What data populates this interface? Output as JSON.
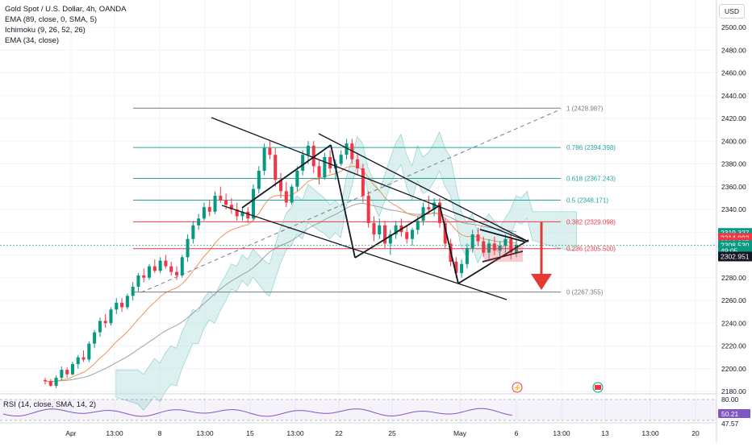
{
  "legend": {
    "symbol": "Gold Spot / U.S. Dollar, 4h, OANDA",
    "ema89": "EMA (89, close, 0, SMA, 5)",
    "ichimoku": "Ichimoku (9, 26, 52, 26)",
    "ema34": "EMA (34, close)"
  },
  "currency": "USD",
  "rsi": {
    "label": "RSI (14, close, SMA, 14, 2)",
    "levels": [
      "80.00",
      "50.21",
      "47.57"
    ]
  },
  "colors": {
    "up": "#089981",
    "down": "#f23645",
    "fib": "#26a69a",
    "fib_red": "#f23645",
    "ema89": "#9aa4a0",
    "ema34": "#f0925a",
    "cloud": "#b2dfdb",
    "arrow": "#e53935",
    "axis_text": "#131722"
  },
  "chart_data": {
    "type": "candlestick",
    "x": [
      "Apr",
      "13:00",
      "8",
      "13:00",
      "15",
      "13:00",
      "22",
      "25",
      "May",
      "6",
      "13:00",
      "13",
      "13:00",
      "20"
    ],
    "y_ticks": [
      2180,
      2200,
      2220,
      2240,
      2260,
      2280,
      2300,
      2320,
      2340,
      2360,
      2380,
      2400,
      2420,
      2440,
      2460,
      2480,
      2500
    ],
    "ylim": [
      2180,
      2510
    ],
    "fibonacci": [
      {
        "level": "1",
        "price": 2428.987,
        "label": "1 (2428.987)"
      },
      {
        "level": "0.786",
        "price": 2394.398,
        "label": "0.786 (2394.398)"
      },
      {
        "level": "0.618",
        "price": 2367.243,
        "label": "0.618 (2367.243)"
      },
      {
        "level": "0.5",
        "price": 2348.171,
        "label": "0.5 (2348.171)"
      },
      {
        "level": "0.382",
        "price": 2329.098,
        "label": "0.382 (2329.098)"
      },
      {
        "level": "0.236",
        "price": 2305.5,
        "label": "0.236 (2305.500)"
      },
      {
        "level": "0",
        "price": 2267.355,
        "label": "0 (2267.355)"
      }
    ],
    "price_labels": [
      {
        "text": "2319.327",
        "price": 2319.327,
        "color": "#089981"
      },
      {
        "text": "2314.993",
        "price": 2314.993,
        "color": "#f23645"
      },
      {
        "text": "2310.887",
        "price": 2310.887,
        "color": "#f23645"
      },
      {
        "text": "2308.530",
        "price": 2308.53,
        "color": "#089981"
      },
      {
        "text": "49:05",
        "price": 2303.6,
        "color": "#089981"
      },
      {
        "text": "2302.951",
        "price": 2298.6,
        "color": "#131722"
      }
    ],
    "candles": [
      [
        2190,
        2192,
        2186,
        2189
      ],
      [
        2189,
        2191,
        2184,
        2185
      ],
      [
        2185,
        2194,
        2183,
        2192
      ],
      [
        2192,
        2202,
        2190,
        2199
      ],
      [
        2199,
        2201,
        2192,
        2195
      ],
      [
        2195,
        2206,
        2194,
        2204
      ],
      [
        2204,
        2212,
        2200,
        2210
      ],
      [
        2210,
        2216,
        2206,
        2208
      ],
      [
        2208,
        2224,
        2206,
        2222
      ],
      [
        2222,
        2234,
        2218,
        2232
      ],
      [
        2232,
        2245,
        2228,
        2242
      ],
      [
        2242,
        2248,
        2236,
        2240
      ],
      [
        2240,
        2254,
        2238,
        2252
      ],
      [
        2252,
        2262,
        2248,
        2258
      ],
      [
        2258,
        2262,
        2250,
        2254
      ],
      [
        2254,
        2266,
        2252,
        2264
      ],
      [
        2264,
        2276,
        2260,
        2272
      ],
      [
        2272,
        2284,
        2268,
        2282
      ],
      [
        2282,
        2288,
        2276,
        2280
      ],
      [
        2280,
        2292,
        2278,
        2290
      ],
      [
        2290,
        2296,
        2284,
        2286
      ],
      [
        2286,
        2298,
        2284,
        2295
      ],
      [
        2295,
        2300,
        2288,
        2290
      ],
      [
        2290,
        2294,
        2282,
        2285
      ],
      [
        2285,
        2290,
        2278,
        2282
      ],
      [
        2282,
        2300,
        2280,
        2298
      ],
      [
        2298,
        2318,
        2294,
        2314
      ],
      [
        2314,
        2330,
        2310,
        2326
      ],
      [
        2326,
        2336,
        2322,
        2332
      ],
      [
        2332,
        2346,
        2330,
        2342
      ],
      [
        2342,
        2348,
        2334,
        2338
      ],
      [
        2338,
        2356,
        2336,
        2352
      ],
      [
        2352,
        2360,
        2346,
        2348
      ],
      [
        2348,
        2354,
        2340,
        2344
      ],
      [
        2344,
        2350,
        2336,
        2340
      ],
      [
        2340,
        2346,
        2330,
        2334
      ],
      [
        2334,
        2342,
        2330,
        2338
      ],
      [
        2338,
        2342,
        2328,
        2332
      ],
      [
        2332,
        2362,
        2330,
        2358
      ],
      [
        2358,
        2378,
        2354,
        2374
      ],
      [
        2374,
        2398,
        2370,
        2394
      ],
      [
        2394,
        2400,
        2384,
        2388
      ],
      [
        2388,
        2394,
        2360,
        2366
      ],
      [
        2366,
        2372,
        2350,
        2356
      ],
      [
        2356,
        2364,
        2342,
        2346
      ],
      [
        2346,
        2362,
        2344,
        2360
      ],
      [
        2360,
        2378,
        2356,
        2374
      ],
      [
        2374,
        2392,
        2370,
        2388
      ],
      [
        2388,
        2400,
        2380,
        2396
      ],
      [
        2396,
        2400,
        2372,
        2378
      ],
      [
        2378,
        2384,
        2362,
        2368
      ],
      [
        2368,
        2390,
        2366,
        2386
      ],
      [
        2386,
        2392,
        2372,
        2376
      ],
      [
        2376,
        2384,
        2366,
        2380
      ],
      [
        2380,
        2392,
        2378,
        2388
      ],
      [
        2388,
        2402,
        2384,
        2398
      ],
      [
        2398,
        2402,
        2380,
        2384
      ],
      [
        2384,
        2390,
        2370,
        2376
      ],
      [
        2376,
        2380,
        2346,
        2352
      ],
      [
        2352,
        2356,
        2324,
        2328
      ],
      [
        2328,
        2334,
        2312,
        2318
      ],
      [
        2318,
        2332,
        2314,
        2326
      ],
      [
        2326,
        2330,
        2306,
        2310
      ],
      [
        2310,
        2322,
        2300,
        2318
      ],
      [
        2318,
        2330,
        2314,
        2326
      ],
      [
        2326,
        2332,
        2316,
        2320
      ],
      [
        2320,
        2326,
        2310,
        2314
      ],
      [
        2314,
        2324,
        2308,
        2322
      ],
      [
        2322,
        2334,
        2318,
        2330
      ],
      [
        2330,
        2346,
        2326,
        2342
      ],
      [
        2342,
        2352,
        2336,
        2340
      ],
      [
        2340,
        2350,
        2334,
        2346
      ],
      [
        2346,
        2350,
        2324,
        2328
      ],
      [
        2328,
        2332,
        2306,
        2310
      ],
      [
        2310,
        2314,
        2290,
        2294
      ],
      [
        2294,
        2298,
        2280,
        2284
      ],
      [
        2284,
        2296,
        2280,
        2292
      ],
      [
        2292,
        2310,
        2288,
        2306
      ],
      [
        2306,
        2322,
        2302,
        2318
      ],
      [
        2318,
        2324,
        2308,
        2312
      ],
      [
        2312,
        2316,
        2298,
        2302
      ],
      [
        2302,
        2314,
        2296,
        2310
      ],
      [
        2310,
        2316,
        2300,
        2304
      ],
      [
        2304,
        2312,
        2296,
        2308
      ],
      [
        2308,
        2318,
        2302,
        2314
      ],
      [
        2314,
        2318,
        2296,
        2302
      ],
      [
        2302,
        2314,
        2298,
        2309
      ]
    ],
    "annotations": [
      "Descending channel",
      "Bear flag / triangle",
      "Bearish arrow target"
    ]
  }
}
